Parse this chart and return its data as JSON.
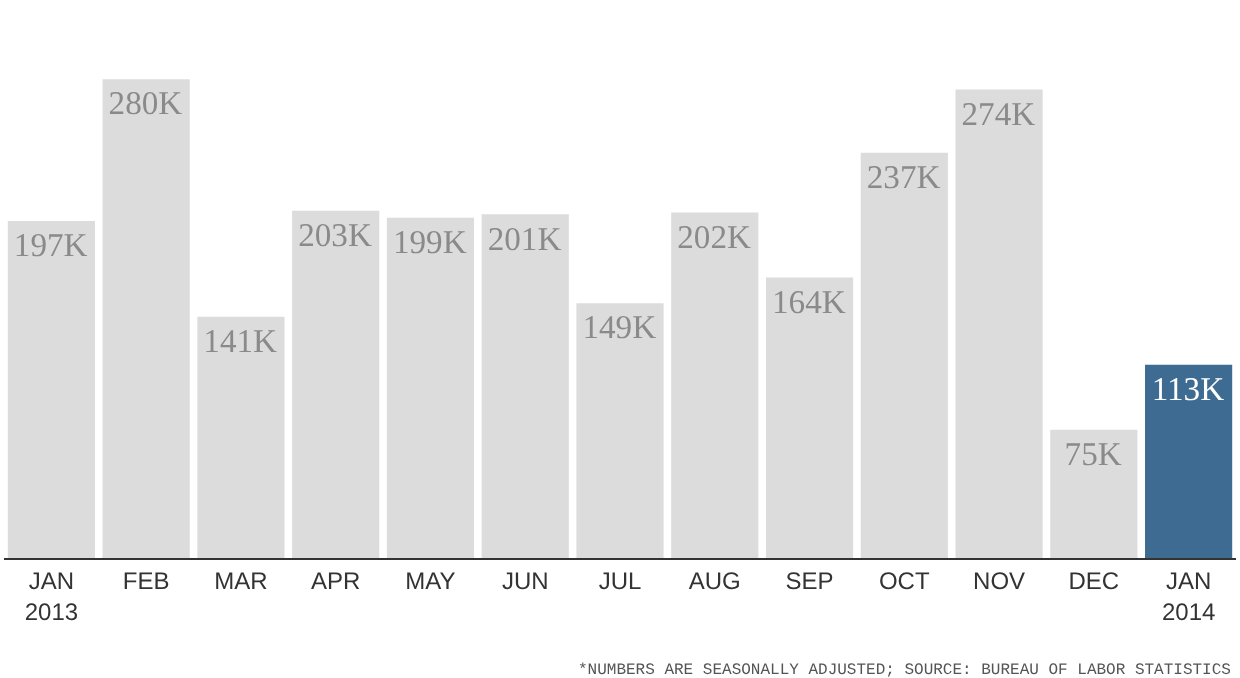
{
  "chart_data": {
    "type": "bar",
    "categories": [
      "JAN\n2013",
      "FEB",
      "MAR",
      "APR",
      "MAY",
      "JUN",
      "JUL",
      "AUG",
      "SEP",
      "OCT",
      "NOV",
      "DEC",
      "JAN\n2014"
    ],
    "values": [
      197,
      280,
      141,
      203,
      199,
      201,
      149,
      202,
      164,
      237,
      274,
      75,
      113
    ],
    "value_labels": [
      "197K",
      "280K",
      "141K",
      "203K",
      "199K",
      "201K",
      "149K",
      "202K",
      "164K",
      "237K",
      "274K",
      "75K",
      "113K"
    ],
    "colors": [
      "#dcdcdc",
      "#dcdcdc",
      "#dcdcdc",
      "#dcdcdc",
      "#dcdcdc",
      "#dcdcdc",
      "#dcdcdc",
      "#dcdcdc",
      "#dcdcdc",
      "#dcdcdc",
      "#dcdcdc",
      "#dcdcdc",
      "#3d6b91"
    ],
    "annotations": [
      "*NUMBERS ARE SEASONALLY ADJUSTED; SOURCE: BUREAU OF LABOR STATISTICS"
    ],
    "legend": false
  }
}
